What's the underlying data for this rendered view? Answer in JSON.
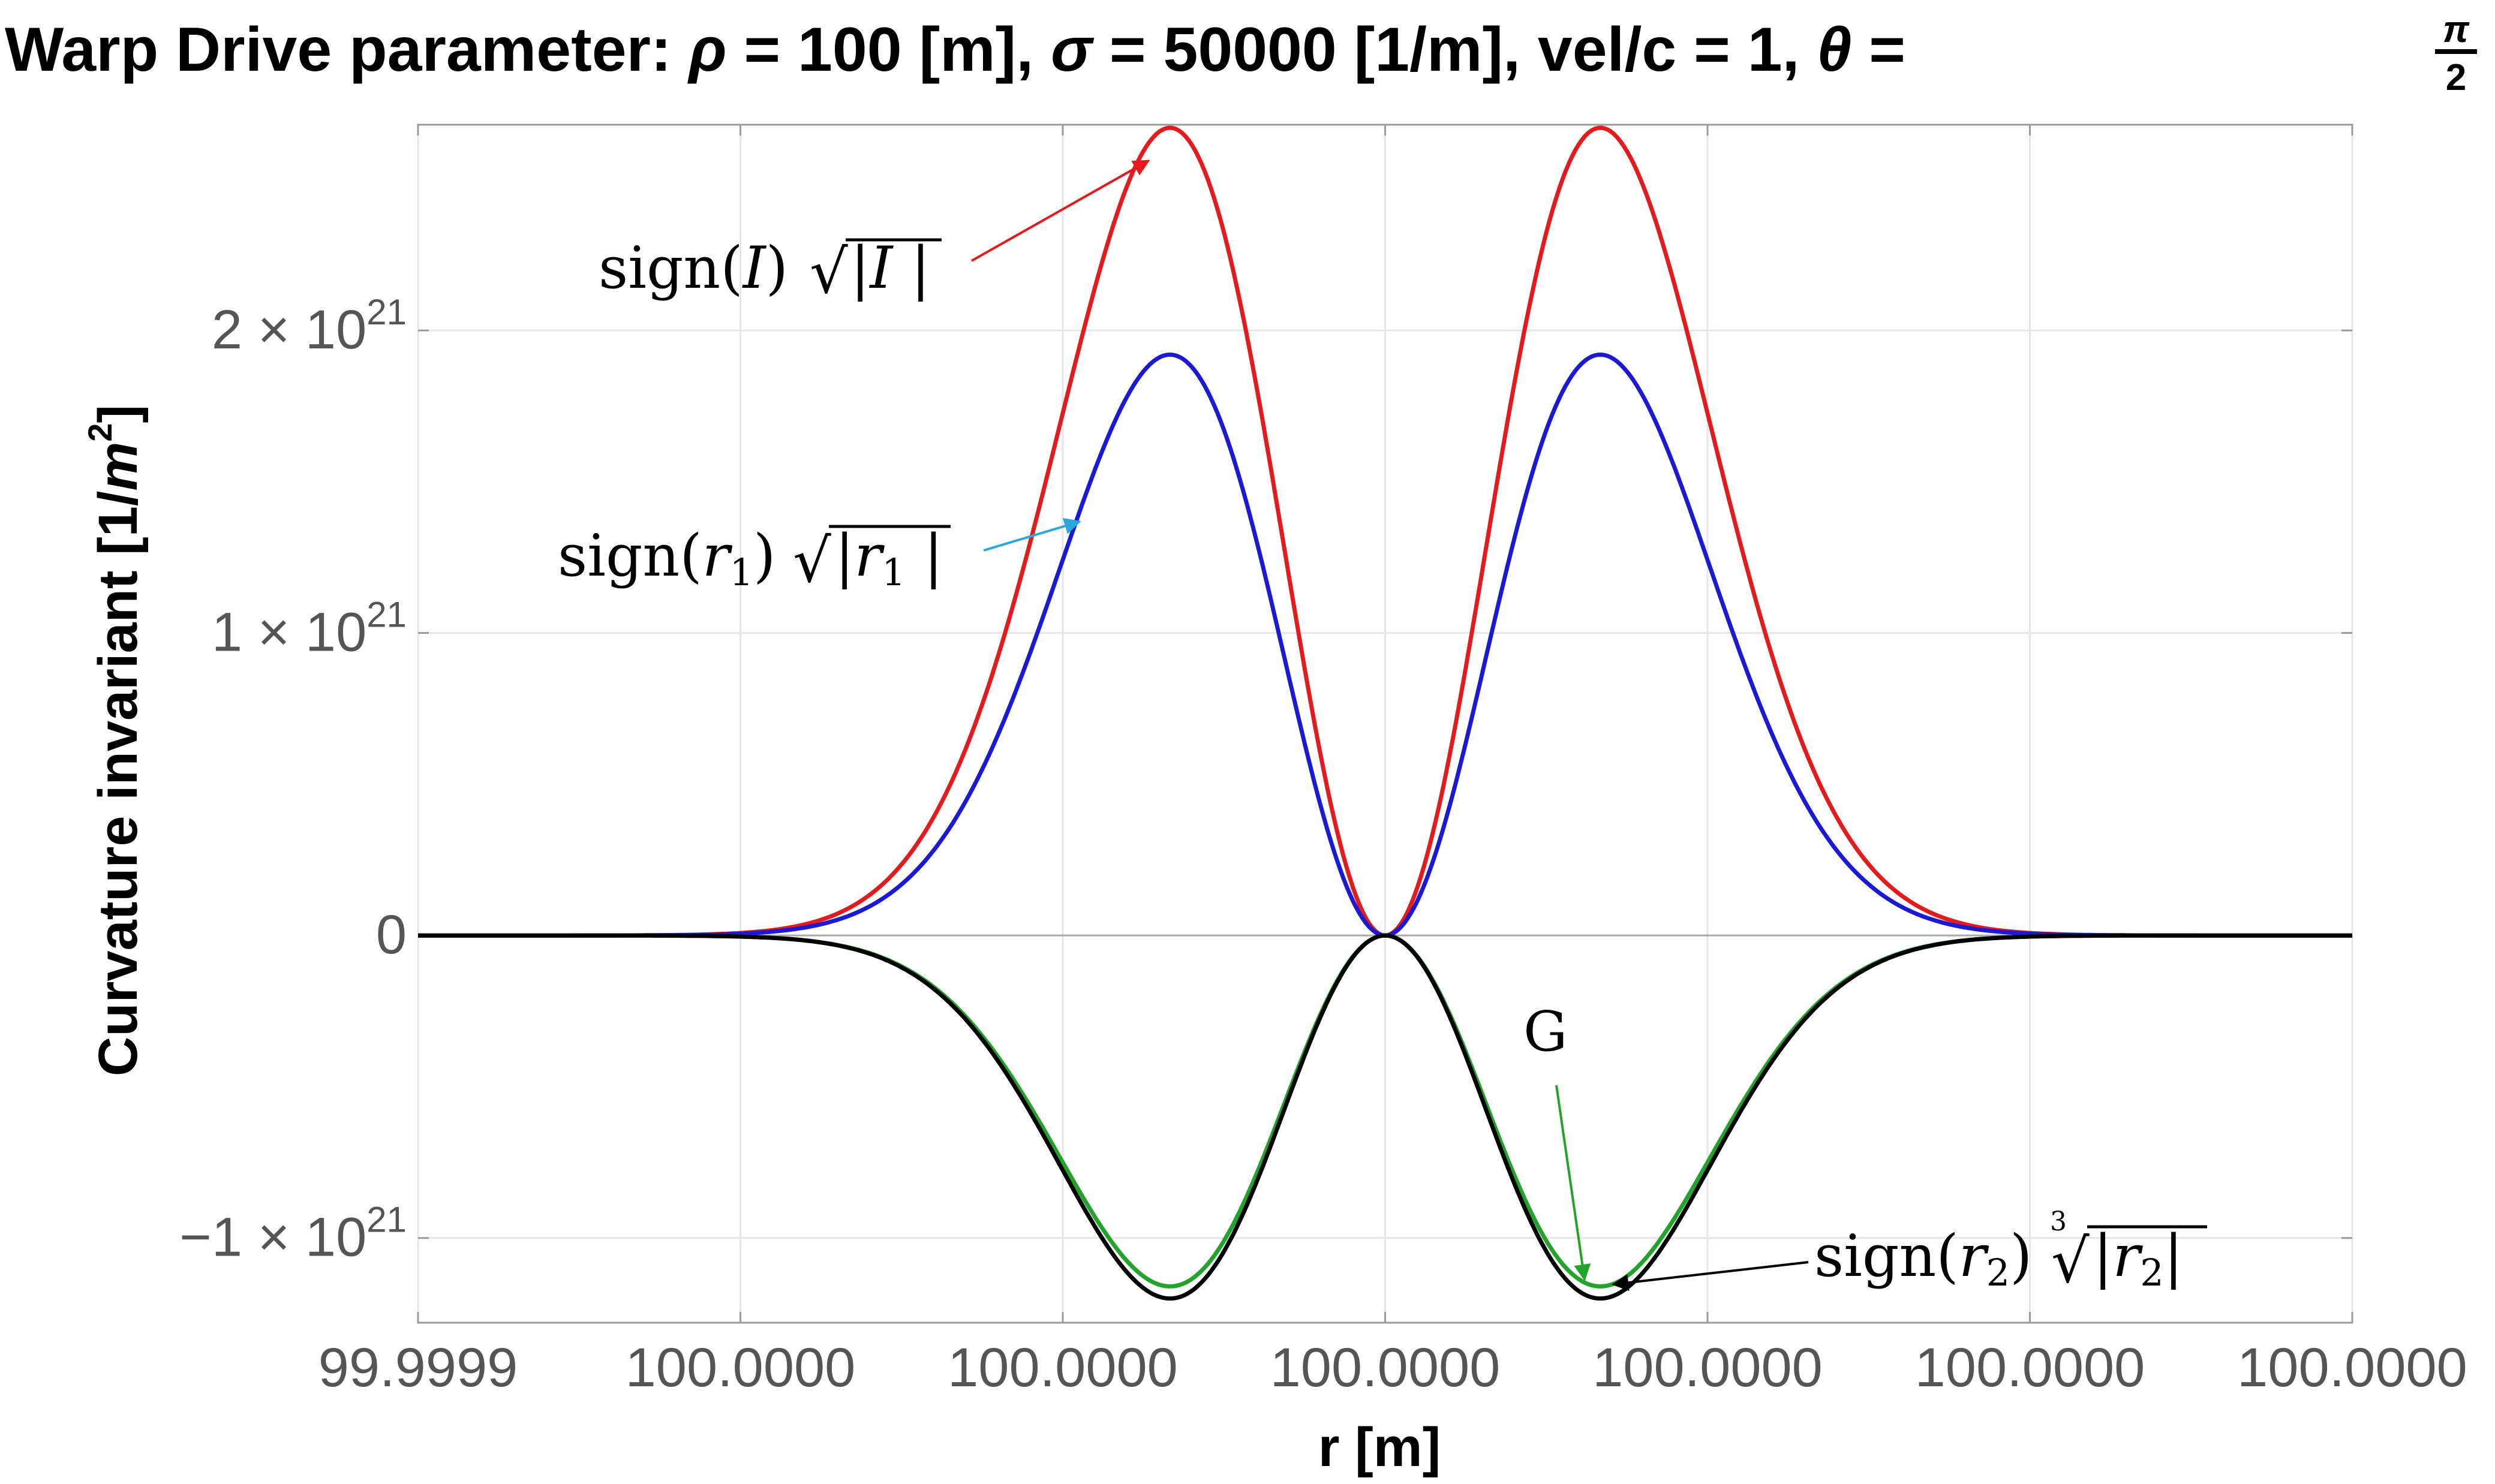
{
  "chart_data": {
    "type": "line",
    "title": {
      "lead": "Warp Drive parameter: ",
      "rho_symbol": "ρ",
      "rho_text": " = 100 [m], ",
      "sigma_symbol": "σ",
      "sigma_text": " = 50000 [1/m], vel/c = 1, ",
      "theta_symbol": "θ",
      "theta_eq": " = ",
      "frac_num": "π",
      "frac_den": "2"
    },
    "xlabel": "r [m]",
    "ylabel": "Curvature invariant [1/m^2]",
    "ylabel_parts": {
      "main": "Curvature invariant [1/",
      "var": "m",
      "sup": "2",
      "close": "]"
    },
    "x_tick_labels": [
      "99.9999",
      "100.0000",
      "100.0000",
      "100.0000",
      "100.0000",
      "100.0000",
      "100.0000"
    ],
    "x_ticks": [
      99.99993,
      99.99995,
      99.99997,
      99.99999,
      100.00001,
      100.00003,
      100.00005
    ],
    "xlim": [
      99.99993,
      100.00005
    ],
    "y_ticks": [
      {
        "value": 2e+21,
        "mant": "2",
        "exp": "21"
      },
      {
        "value": 1e+21,
        "mant": "1",
        "exp": "21"
      },
      {
        "value": 0,
        "mant": "0",
        "exp": ""
      },
      {
        "value": -1e+21,
        "mant": "−1",
        "exp": "21"
      }
    ],
    "ylim": [
      -1.28e+21,
      2.68e+21
    ],
    "grid": true,
    "bubble_center": 99.99999,
    "peak_offset": 1.335e-05,
    "series": [
      {
        "id": "I",
        "color": "#e41a1c",
        "peak": 2.67e+21,
        "min": null,
        "labels": {
          "pre": "sign(",
          "var": "I",
          "post": ")",
          "root": "√",
          "abs": "|I |",
          "index": ""
        }
      },
      {
        "id": "r1",
        "color": "#1a1ad6",
        "peak": 1.92e+21,
        "min": null,
        "labels": {
          "pre": "sign(",
          "var": "r",
          "sub": "1",
          "post": ")",
          "root": "√",
          "abs": "|r",
          "abs_sub": "1",
          "abs_close": " |",
          "index": ""
        }
      },
      {
        "id": "G",
        "color": "#22a32a",
        "peak": null,
        "min": -1.16e+21,
        "labels": {
          "text": "G"
        }
      },
      {
        "id": "r2",
        "color": "#000000",
        "peak": null,
        "min": -1.2e+21,
        "labels": {
          "pre": "sign(",
          "var": "r",
          "sub": "2",
          "post": ")",
          "root": "√",
          "abs": "|r",
          "abs_sub": "2",
          "abs_close": "|",
          "index": "3"
        }
      }
    ],
    "arrow_colors": {
      "I": "#e41a1c",
      "r1": "#29a8e0",
      "G": "#22a32a",
      "r2": "#000000"
    }
  }
}
